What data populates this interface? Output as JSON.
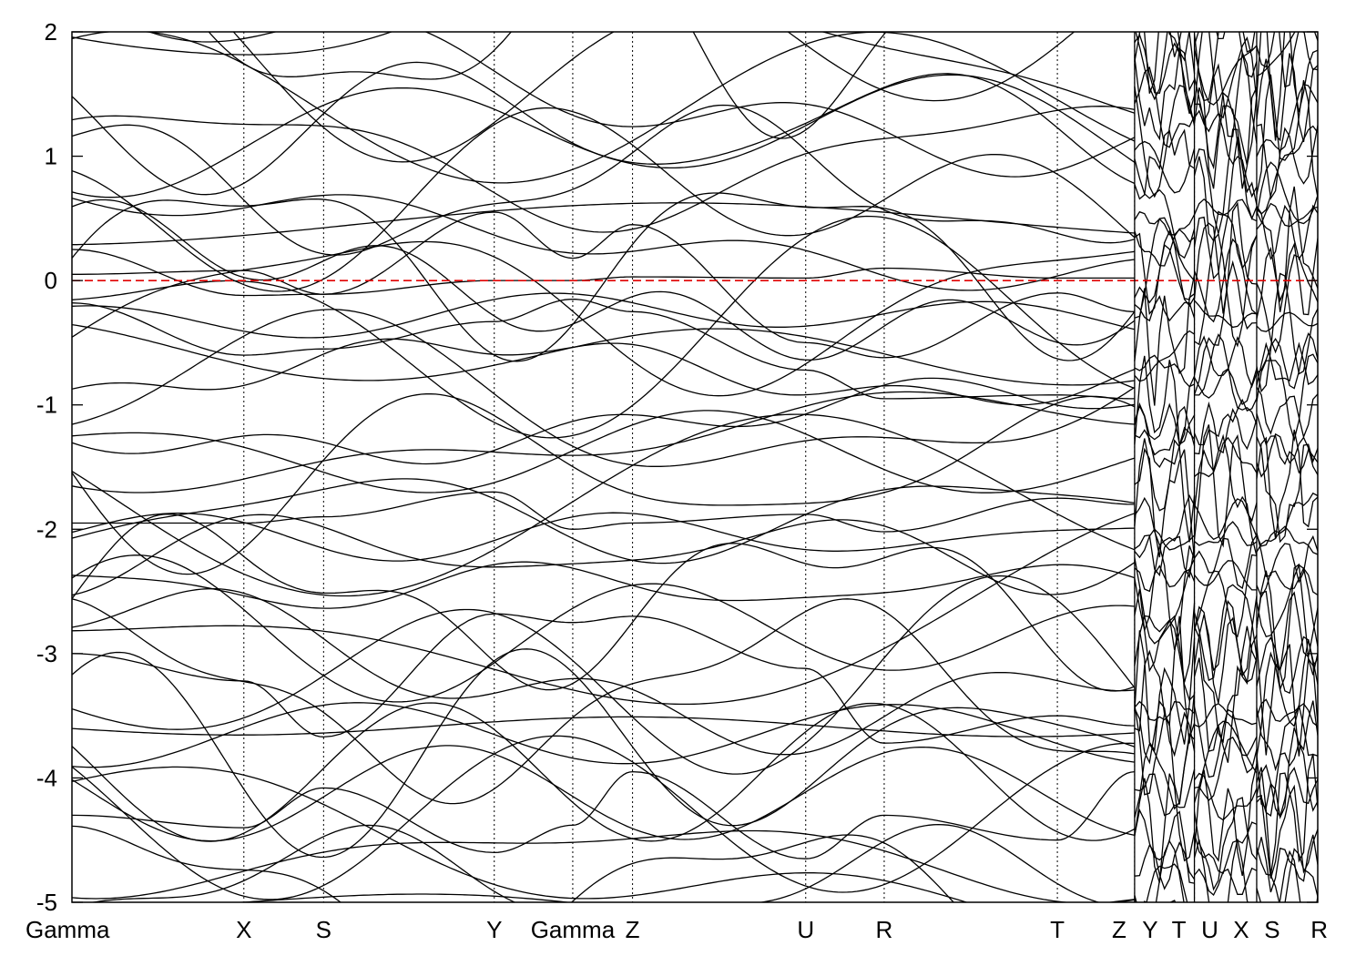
{
  "chart_data": {
    "type": "line",
    "title": "",
    "xlabel": "",
    "ylabel": "",
    "ylim": [
      -5,
      2
    ],
    "y_ticks": [
      2,
      1,
      0,
      -1,
      -2,
      -3,
      -4,
      -5
    ],
    "y_tick_labels": [
      "2",
      "1",
      "0",
      "-1",
      "-2",
      "-3",
      "-4",
      "-5"
    ],
    "xlim": [
      0,
      1
    ],
    "k_points": [
      {
        "label": "Gamma",
        "x": 0.0
      },
      {
        "label": "X",
        "x": 0.138
      },
      {
        "label": "S",
        "x": 0.202
      },
      {
        "label": "Y",
        "x": 0.339
      },
      {
        "label": "Gamma",
        "x": 0.402
      },
      {
        "label": "Z",
        "x": 0.45
      },
      {
        "label": "U",
        "x": 0.589
      },
      {
        "label": "R",
        "x": 0.652
      },
      {
        "label": "T",
        "x": 0.791
      },
      {
        "label": "Z",
        "x": 0.853
      },
      {
        "label": "Y",
        "x": 0.853
      },
      {
        "label": "T",
        "x": 0.901
      },
      {
        "label": "U",
        "x": 0.901
      },
      {
        "label": "X",
        "x": 0.951
      },
      {
        "label": "S",
        "x": 0.951
      },
      {
        "label": "R",
        "x": 1.0
      }
    ],
    "path_breaks": [
      0.853,
      0.901,
      0.951
    ],
    "fermi_level": 0,
    "fermi_line_color": "#e00000",
    "band_color": "#000000",
    "bands_sample": [
      {
        "name": "",
        "values": [
          [
            0.0,
            0.05
          ],
          [
            0.138,
            0.08
          ],
          [
            0.202,
            -0.11
          ],
          [
            0.339,
            0.0
          ],
          [
            0.402,
            0.0
          ],
          [
            0.45,
            0.03
          ],
          [
            0.589,
            0.02
          ],
          [
            0.652,
            0.1
          ],
          [
            0.791,
            0.02
          ],
          [
            0.853,
            0.02
          ]
        ]
      },
      {
        "name": "",
        "values": [
          [
            0.0,
            0.25
          ],
          [
            0.138,
            -0.12
          ],
          [
            0.202,
            -0.11
          ],
          [
            0.339,
            0.55
          ],
          [
            0.402,
            0.18
          ],
          [
            0.45,
            0.45
          ],
          [
            0.589,
            -0.5
          ],
          [
            0.652,
            -0.62
          ],
          [
            0.791,
            -0.1
          ],
          [
            0.853,
            -0.25
          ]
        ]
      },
      {
        "name": "",
        "values": [
          [
            0.0,
            -0.18
          ],
          [
            0.138,
            -0.6
          ],
          [
            0.202,
            -0.55
          ],
          [
            0.339,
            -0.33
          ],
          [
            0.402,
            -0.15
          ],
          [
            0.45,
            -0.25
          ],
          [
            0.589,
            -0.72
          ],
          [
            0.652,
            -0.95
          ],
          [
            0.791,
            -0.92
          ],
          [
            0.853,
            -0.95
          ]
        ]
      },
      {
        "name": "",
        "values": [
          [
            0.0,
            -1.95
          ],
          [
            0.138,
            -1.95
          ],
          [
            0.202,
            -1.9
          ],
          [
            0.339,
            -1.7
          ],
          [
            0.402,
            -2.0
          ],
          [
            0.45,
            -1.95
          ],
          [
            0.589,
            -1.88
          ],
          [
            0.652,
            -2.02
          ],
          [
            0.791,
            -1.75
          ],
          [
            0.853,
            -1.8
          ]
        ]
      },
      {
        "name": "",
        "values": [
          [
            0.0,
            -3.0
          ],
          [
            0.138,
            -3.22
          ],
          [
            0.202,
            -3.67
          ],
          [
            0.339,
            -2.68
          ],
          [
            0.402,
            -2.75
          ],
          [
            0.45,
            -2.7
          ],
          [
            0.589,
            -3.12
          ],
          [
            0.652,
            -3.72
          ],
          [
            0.791,
            -3.5
          ],
          [
            0.853,
            -3.58
          ]
        ]
      },
      {
        "name": "",
        "values": [
          [
            0.0,
            -4.3
          ],
          [
            0.138,
            -4.4
          ],
          [
            0.202,
            -4.08
          ],
          [
            0.339,
            -4.6
          ],
          [
            0.402,
            -4.38
          ],
          [
            0.45,
            -3.95
          ],
          [
            0.589,
            -4.65
          ],
          [
            0.652,
            -4.3
          ],
          [
            0.791,
            -4.5
          ],
          [
            0.853,
            -3.95
          ]
        ]
      }
    ]
  }
}
